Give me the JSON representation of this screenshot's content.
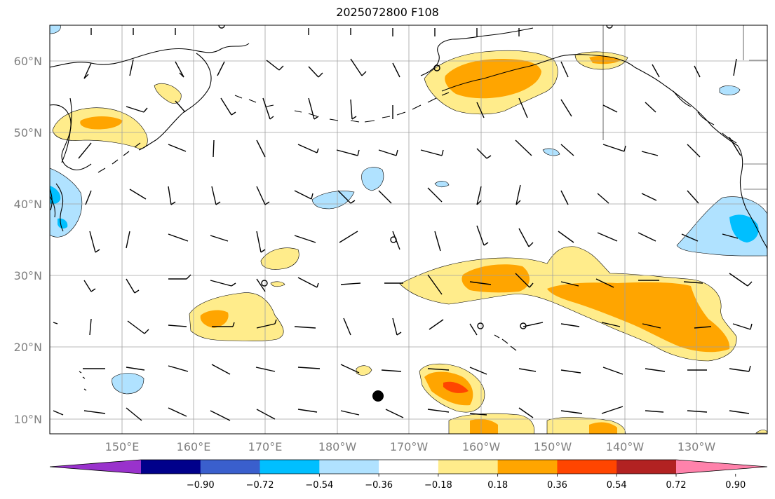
{
  "title": "2025072800 F108",
  "lat_labels": [
    "60°N",
    "50°N",
    "40°N",
    "30°N",
    "20°N",
    "10°N"
  ],
  "lon_labels": [
    "150°E",
    "160°E",
    "170°E",
    "180°W",
    "170°W",
    "160°W",
    "150°W",
    "140°W",
    "130°W"
  ],
  "colorbar": {
    "labels": [
      "−0.90",
      "−0.72",
      "−0.54",
      "−0.36",
      "−0.18",
      "0.18",
      "0.36",
      "0.54",
      "0.72",
      "0.90"
    ],
    "colors": [
      "#9932cc",
      "#00008b",
      "#3a5fcd",
      "#00bfff",
      "#b0e2ff",
      "#ffffff",
      "#ffec8b",
      "#ffa500",
      "#ff4500",
      "#b22222",
      "#ff82ab"
    ]
  }
}
